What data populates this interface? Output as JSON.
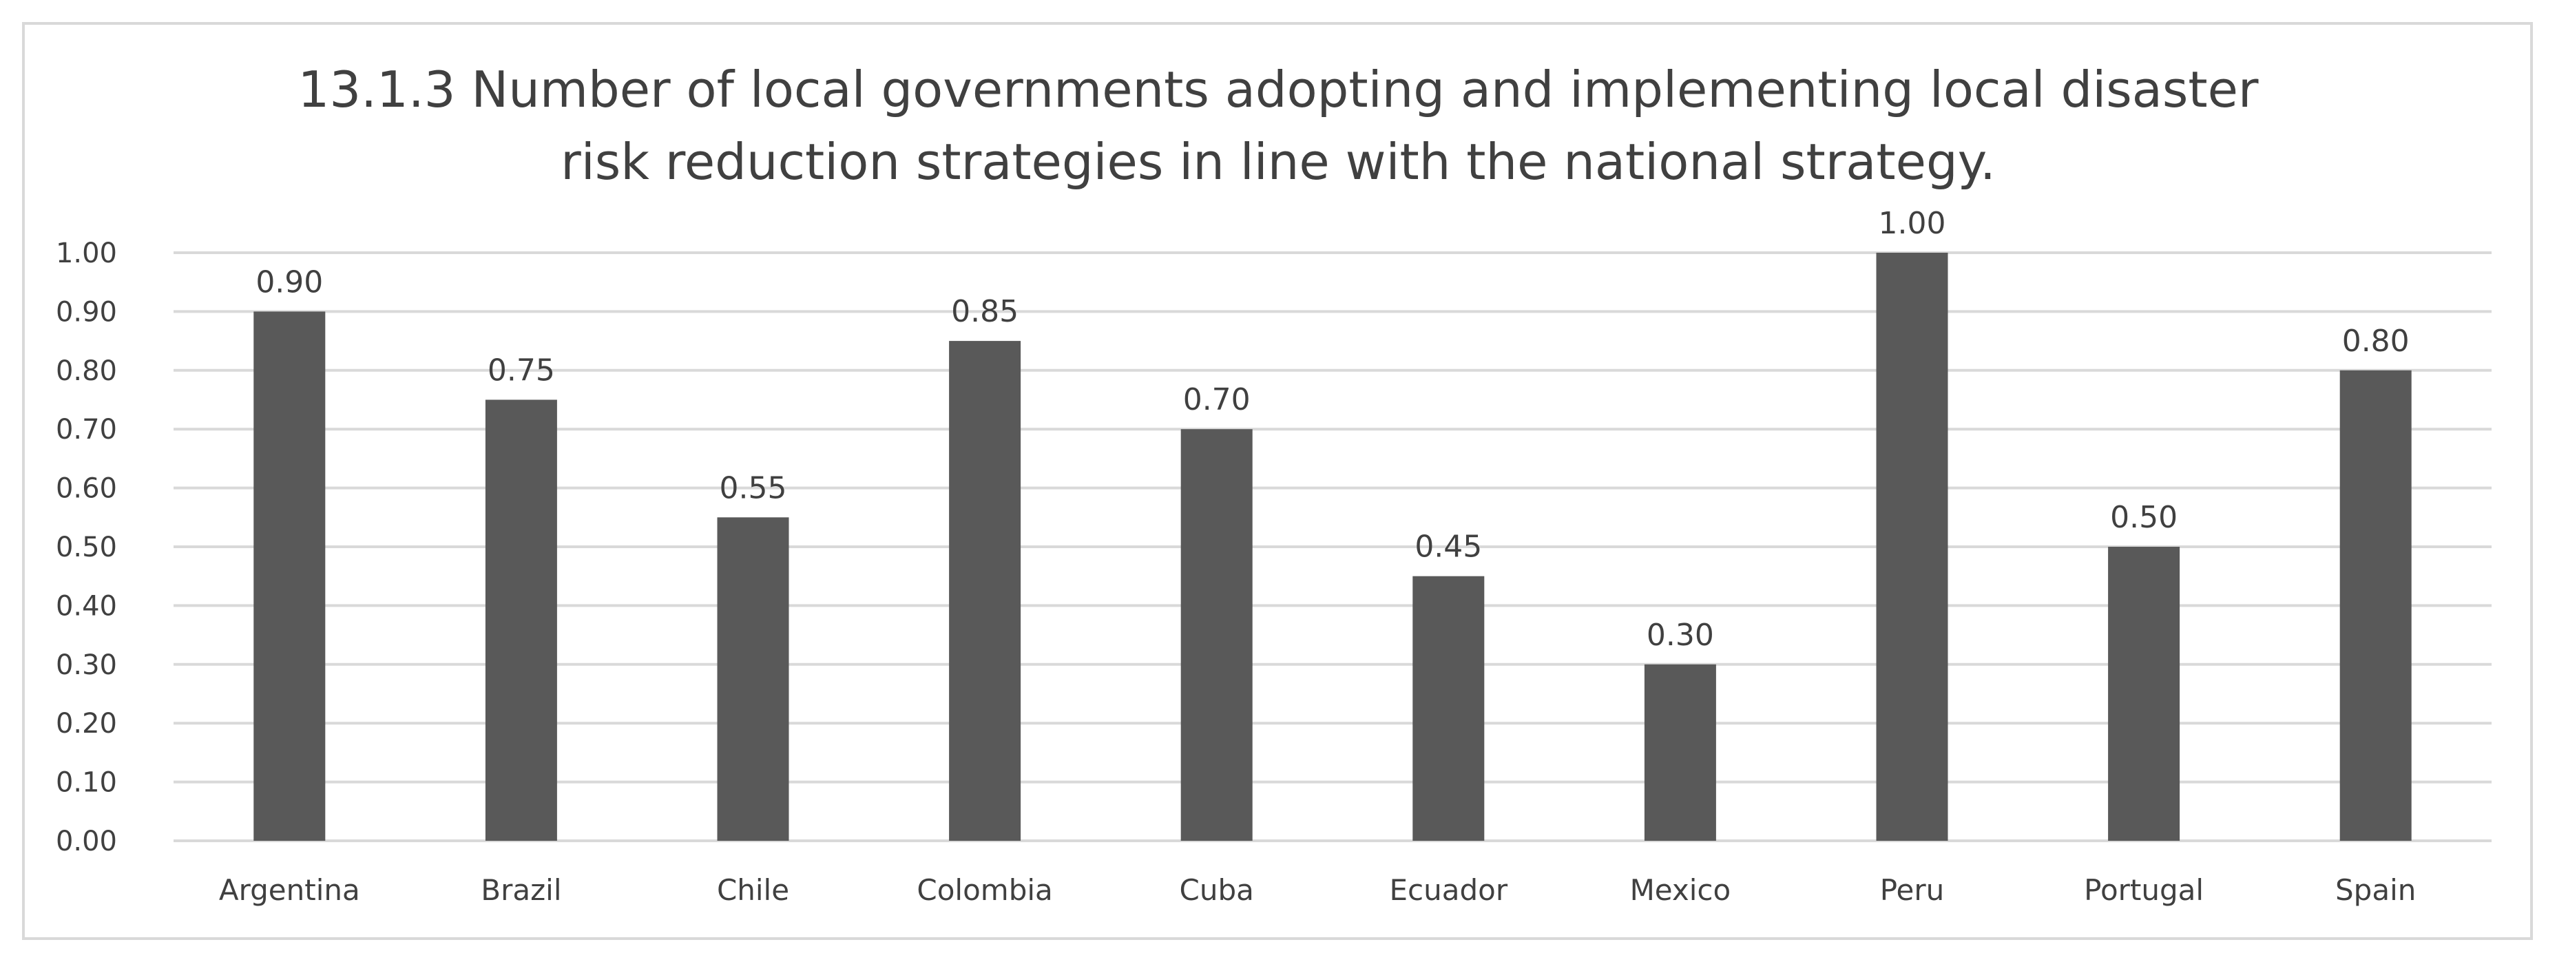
{
  "chart_data": {
    "type": "bar",
    "title_lines": [
      "13.1.3 Number of local governments adopting and implementing local disaster",
      "risk reduction strategies in line with the national strategy."
    ],
    "categories": [
      "Argentina",
      "Brazil",
      "Chile",
      "Colombia",
      "Cuba",
      "Ecuador",
      "Mexico",
      "Peru",
      "Portugal",
      "Spain"
    ],
    "values": [
      0.9,
      0.75,
      0.55,
      0.85,
      0.7,
      0.45,
      0.3,
      1.0,
      0.5,
      0.8
    ],
    "value_labels": [
      "0.90",
      "0.75",
      "0.55",
      "0.85",
      "0.70",
      "0.45",
      "0.30",
      "1.00",
      "0.50",
      "0.80"
    ],
    "y_ticks": [
      0.0,
      0.1,
      0.2,
      0.3,
      0.4,
      0.5,
      0.6,
      0.7,
      0.8,
      0.9,
      1.0
    ],
    "y_tick_labels": [
      "0.00",
      "0.10",
      "0.20",
      "0.30",
      "0.40",
      "0.50",
      "0.60",
      "0.70",
      "0.80",
      "0.90",
      "1.00"
    ],
    "ylim": [
      0,
      1.0
    ],
    "xlabel": "",
    "ylabel": "",
    "grid": true,
    "legend": "none",
    "colors": {
      "bar": "#595959",
      "grid": "#d9d9d9",
      "text": "#595959"
    }
  }
}
